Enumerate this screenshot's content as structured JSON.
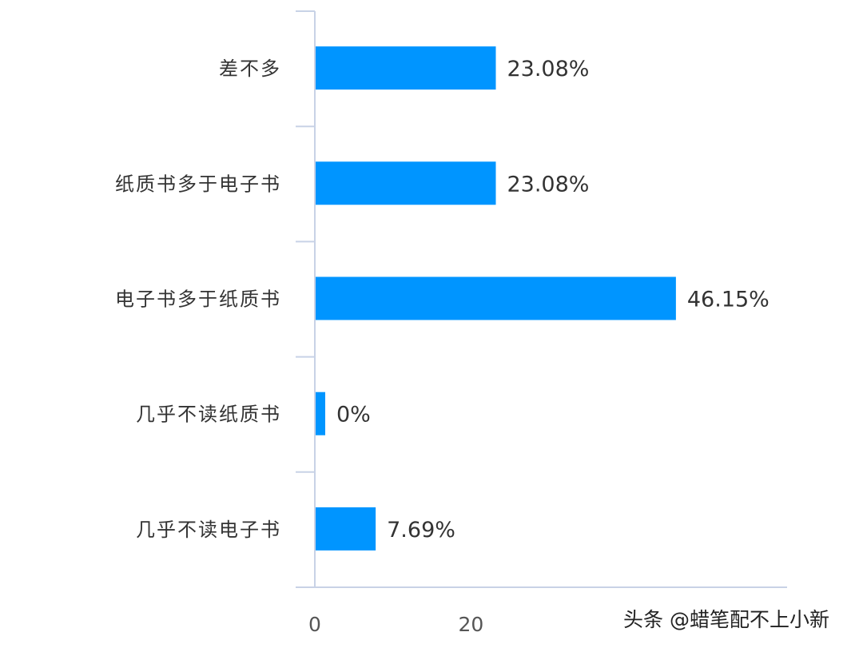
{
  "chart_data": {
    "type": "bar",
    "orientation": "horizontal",
    "categories": [
      "差不多",
      "纸质书多于电子书",
      "电子书多于纸质书",
      "几乎不读纸质书",
      "几乎不读电子书"
    ],
    "values": [
      23.08,
      23.08,
      46.15,
      0,
      7.69
    ],
    "data_labels": [
      "23.08%",
      "23.08%",
      "46.15%",
      "0%",
      "7.69%"
    ],
    "x_ticks": [
      "0",
      "20"
    ],
    "xlim": [
      0,
      60
    ],
    "title": "",
    "xlabel": "",
    "ylabel": "",
    "grid": false,
    "bar_color": "#0095ff",
    "axis_color": "#c8d2e6"
  },
  "watermark": {
    "text": "头条 @蜡笔配不上小新"
  }
}
